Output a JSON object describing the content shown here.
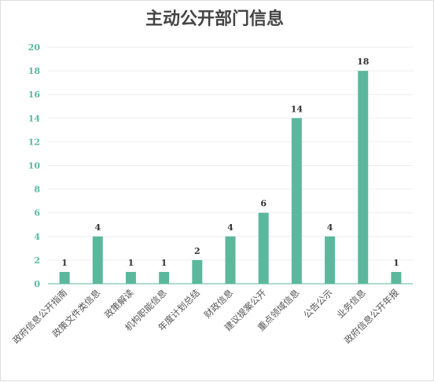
{
  "colors": {
    "bar": "#5bb89d",
    "grid": "#ededed",
    "axis": "#5bb89d",
    "ytick": "#5bb89d"
  },
  "chart_data": {
    "type": "bar",
    "title": "主动公开部门信息",
    "xlabel": "",
    "ylabel": "",
    "ylim": [
      0,
      20
    ],
    "yticks": [
      0,
      2,
      4,
      6,
      8,
      10,
      12,
      14,
      16,
      18,
      20
    ],
    "grid": true,
    "legend": "none",
    "categories": [
      "政府信息公开指南",
      "政策文件类信息",
      "政策解读",
      "机构职能信息",
      "年度计划总结",
      "财政信息",
      "建议提案公开",
      "重点领域信息",
      "公告公示",
      "业务信息",
      "政府信息公开年报"
    ],
    "values": [
      1,
      4,
      1,
      1,
      2,
      4,
      6,
      14,
      4,
      18,
      1
    ]
  }
}
